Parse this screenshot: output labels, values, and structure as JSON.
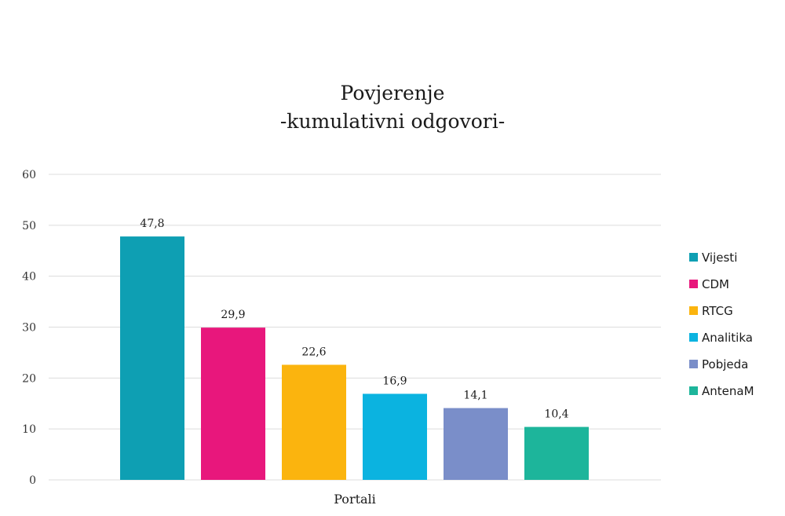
{
  "chart_data": {
    "type": "bar",
    "title": [
      "Povjerenje",
      "-kumulativni odgovori-"
    ],
    "categories": [
      "Portali"
    ],
    "xlabel": "",
    "ylabel": "",
    "ylim": [
      0,
      60
    ],
    "yticks": [
      "0",
      "10",
      "20",
      "30",
      "40",
      "50",
      "60"
    ],
    "grid": true,
    "legend_position": "right",
    "series": [
      {
        "name": "Vijesti",
        "values": [
          47.8
        ],
        "label": "47,8",
        "color": "#0e9fb3"
      },
      {
        "name": "CDM",
        "values": [
          29.9
        ],
        "label": "29,9",
        "color": "#e8177c"
      },
      {
        "name": "RTCG",
        "values": [
          22.6
        ],
        "label": "22,6",
        "color": "#fbb40e"
      },
      {
        "name": "Analitika",
        "values": [
          16.9
        ],
        "label": "16,9",
        "color": "#0bb3e0"
      },
      {
        "name": "Pobjeda",
        "values": [
          14.1
        ],
        "label": "14,1",
        "color": "#7a8ec9"
      },
      {
        "name": "AntenaM",
        "values": [
          10.4
        ],
        "label": "10,4",
        "color": "#1db59b"
      }
    ]
  }
}
